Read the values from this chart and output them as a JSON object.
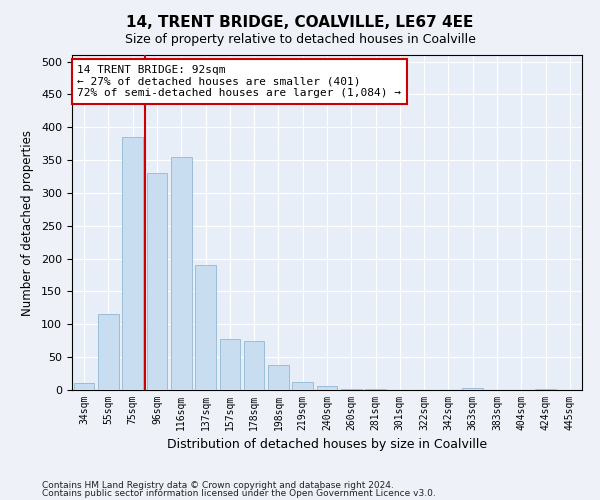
{
  "title": "14, TRENT BRIDGE, COALVILLE, LE67 4EE",
  "subtitle": "Size of property relative to detached houses in Coalville",
  "xlabel": "Distribution of detached houses by size in Coalville",
  "ylabel": "Number of detached properties",
  "categories": [
    "34sqm",
    "55sqm",
    "75sqm",
    "96sqm",
    "116sqm",
    "137sqm",
    "157sqm",
    "178sqm",
    "198sqm",
    "219sqm",
    "240sqm",
    "260sqm",
    "281sqm",
    "301sqm",
    "322sqm",
    "342sqm",
    "363sqm",
    "383sqm",
    "404sqm",
    "424sqm",
    "445sqm"
  ],
  "values": [
    10,
    115,
    385,
    330,
    355,
    190,
    77,
    75,
    38,
    12,
    6,
    2,
    2,
    0,
    0,
    0,
    3,
    0,
    0,
    2,
    0
  ],
  "bar_color": "#c9ddf0",
  "bar_edge_color": "#9bbdd8",
  "vline_color": "#cc0000",
  "annotation_text": "14 TRENT BRIDGE: 92sqm\n← 27% of detached houses are smaller (401)\n72% of semi-detached houses are larger (1,084) →",
  "annotation_box_facecolor": "#ffffff",
  "annotation_box_edgecolor": "#cc0000",
  "ylim": [
    0,
    510
  ],
  "yticks": [
    0,
    50,
    100,
    150,
    200,
    250,
    300,
    350,
    400,
    450,
    500
  ],
  "footer1": "Contains HM Land Registry data © Crown copyright and database right 2024.",
  "footer2": "Contains public sector information licensed under the Open Government Licence v3.0.",
  "bg_color": "#eef2f8",
  "plot_bg_color": "#e8eef8",
  "grid_color": "#ffffff"
}
